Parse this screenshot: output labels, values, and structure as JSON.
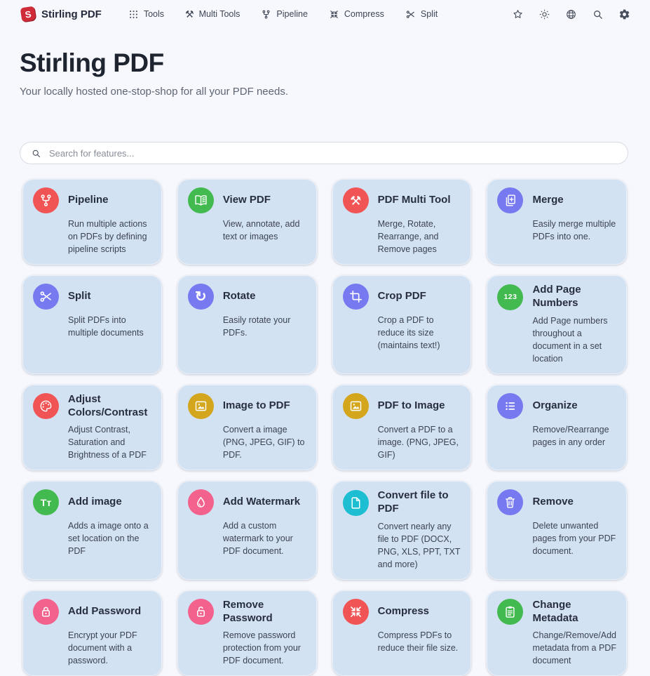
{
  "brand": {
    "name": "Stirling PDF",
    "logo_letter": "S"
  },
  "nav": {
    "items": [
      {
        "label": "Tools",
        "icon": "grid-icon"
      },
      {
        "label": "Multi Tools",
        "icon": "multi-tools-icon"
      },
      {
        "label": "Pipeline",
        "icon": "pipeline-icon"
      },
      {
        "label": "Compress",
        "icon": "compress-icon"
      },
      {
        "label": "Split",
        "icon": "scissors-icon"
      }
    ],
    "actions": [
      {
        "icon": "star-icon"
      },
      {
        "icon": "brightness-icon"
      },
      {
        "icon": "globe-icon"
      },
      {
        "icon": "search-icon"
      },
      {
        "icon": "gear-icon"
      }
    ]
  },
  "hero": {
    "title": "Stirling PDF",
    "subtitle": "Your locally hosted one-stop-shop for all your PDF needs."
  },
  "search": {
    "placeholder": "Search for features...",
    "value": ""
  },
  "colors": {
    "page_bg": "#f7f8fd",
    "card_bg": "#d3e2f2",
    "red": "#f15454",
    "green": "#42ba50",
    "violet": "#7679ef",
    "yellow": "#d3a61d",
    "pink": "#f2628d",
    "cyan": "#1dbdd2"
  },
  "tools": [
    {
      "title": "Pipeline",
      "description": "Run multiple actions on PDFs by defining pipeline scripts",
      "icon": "pipeline-icon",
      "icon_color": "#f15454"
    },
    {
      "title": "View PDF",
      "description": "View, annotate, add text or images",
      "icon": "book-icon",
      "icon_color": "#42ba50"
    },
    {
      "title": "PDF Multi Tool",
      "description": "Merge, Rotate, Rearrange, and Remove pages",
      "icon": "multi-tools-icon",
      "icon_color": "#f15454"
    },
    {
      "title": "Merge",
      "description": "Easily merge multiple PDFs into one.",
      "icon": "merge-icon",
      "icon_color": "#7679ef"
    },
    {
      "title": "Split",
      "description": "Split PDFs into multiple documents",
      "icon": "scissors-icon",
      "icon_color": "#7679ef"
    },
    {
      "title": "Rotate",
      "description": "Easily rotate your PDFs.",
      "icon": "rotate-icon",
      "icon_color": "#7679ef"
    },
    {
      "title": "Crop PDF",
      "description": "Crop a PDF to reduce its size (maintains text!)",
      "icon": "crop-icon",
      "icon_color": "#7679ef"
    },
    {
      "title": "Add Page Numbers",
      "description": "Add Page numbers throughout a document in a set location",
      "icon": "numbers-123-icon",
      "icon_color": "#42ba50"
    },
    {
      "title": "Adjust Colors/Contrast",
      "description": "Adjust Contrast, Saturation and Brightness of a PDF",
      "icon": "palette-icon",
      "icon_color": "#f15454"
    },
    {
      "title": "Image to PDF",
      "description": "Convert a image (PNG, JPEG, GIF) to PDF.",
      "icon": "image-icon",
      "icon_color": "#d3a61d"
    },
    {
      "title": "PDF to Image",
      "description": "Convert a PDF to a image. (PNG, JPEG, GIF)",
      "icon": "image-icon",
      "icon_color": "#d3a61d"
    },
    {
      "title": "Organize",
      "description": "Remove/Rearrange pages in any order",
      "icon": "list-icon",
      "icon_color": "#7679ef"
    },
    {
      "title": "Add image",
      "description": "Adds a image onto a set location on the PDF",
      "icon": "text-fields-icon",
      "icon_color": "#42ba50"
    },
    {
      "title": "Add Watermark",
      "description": "Add a custom watermark to your PDF document.",
      "icon": "droplet-icon",
      "icon_color": "#f2628d"
    },
    {
      "title": "Convert file to PDF",
      "description": "Convert nearly any file to PDF (DOCX, PNG, XLS, PPT, TXT and more)",
      "icon": "file-icon",
      "icon_color": "#1dbdd2"
    },
    {
      "title": "Remove",
      "description": "Delete unwanted pages from your PDF document.",
      "icon": "trash-icon",
      "icon_color": "#7679ef"
    },
    {
      "title": "Add Password",
      "description": "Encrypt your PDF document with a password.",
      "icon": "lock-icon",
      "icon_color": "#f2628d"
    },
    {
      "title": "Remove Password",
      "description": "Remove password protection from your PDF document.",
      "icon": "unlock-icon",
      "icon_color": "#f2628d"
    },
    {
      "title": "Compress",
      "description": "Compress PDFs to reduce their file size.",
      "icon": "compress-icon",
      "icon_color": "#f15454"
    },
    {
      "title": "Change Metadata",
      "description": "Change/Remove/Add metadata from a PDF document",
      "icon": "clipboard-icon",
      "icon_color": "#42ba50"
    }
  ]
}
